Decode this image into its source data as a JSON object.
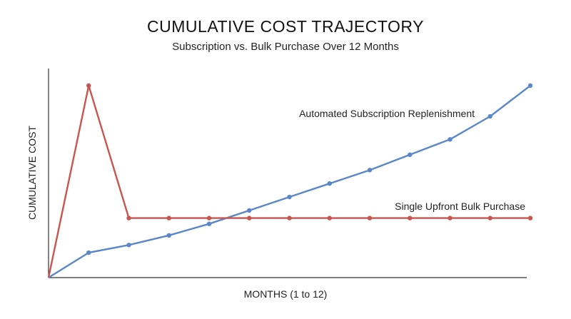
{
  "chart_data": {
    "type": "line",
    "title": "CUMULATIVE COST TRAJECTORY",
    "subtitle": "Subscription vs. Bulk Purchase Over 12 Months",
    "xlabel": "MONTHS (1 to 12)",
    "ylabel": "CUMULATIVE COST",
    "x": [
      0,
      1,
      2,
      3,
      4,
      5,
      6,
      7,
      8,
      9,
      10,
      11,
      12
    ],
    "xlim": [
      0,
      12
    ],
    "ylim": [
      0,
      100
    ],
    "grid": false,
    "series": [
      {
        "name": "Automated Subscription Replenishment",
        "color": "#5b87c9",
        "values": [
          0,
          13,
          17,
          22,
          28,
          35,
          42,
          49,
          56,
          64,
          72,
          84,
          100
        ]
      },
      {
        "name": "Single Upfront Bulk Purchase",
        "color": "#c9554f",
        "values": [
          0,
          100,
          31,
          31,
          31,
          31,
          31,
          31,
          31,
          31,
          31,
          31,
          31
        ]
      }
    ]
  }
}
